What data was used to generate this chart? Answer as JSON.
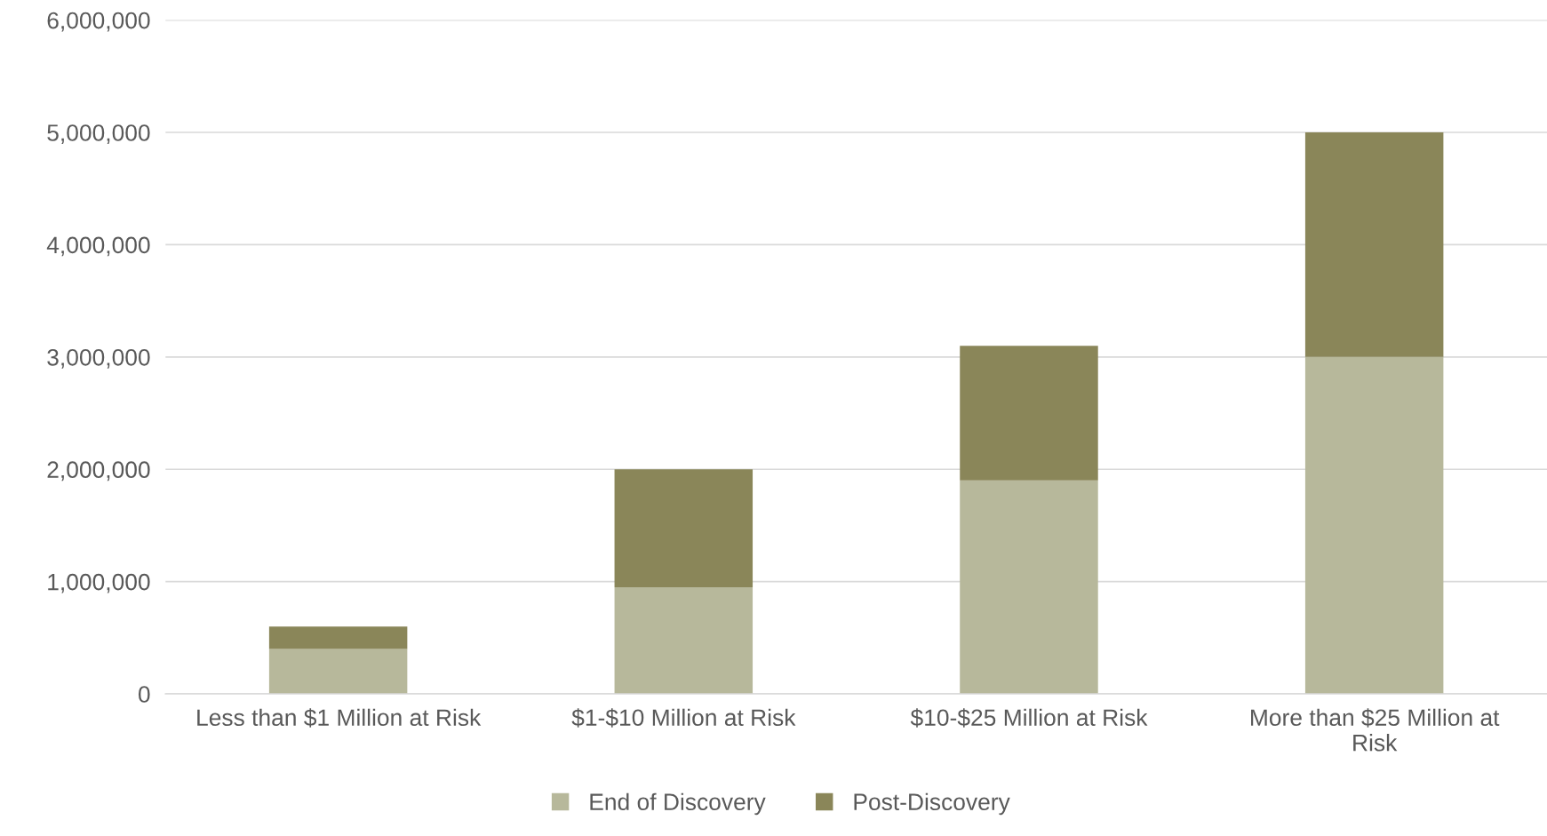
{
  "chart_data": {
    "type": "bar",
    "stacked": true,
    "categories": [
      "Less than $1 Million at Risk",
      "$1-$10 Million at Risk",
      "$10-$25 Million at Risk",
      "More than $25 Million at\nRisk"
    ],
    "series": [
      {
        "name": "End of Discovery",
        "color": "#b7b89b",
        "values": [
          400000,
          950000,
          1900000,
          3000000
        ]
      },
      {
        "name": "Post-Discovery",
        "color": "#8a8659",
        "values": [
          200000,
          1050000,
          1200000,
          2000000
        ]
      }
    ],
    "ylim": [
      0,
      6000000
    ],
    "yticks": [
      {
        "value": 0,
        "label": "0"
      },
      {
        "value": 1000000,
        "label": "1,000,000"
      },
      {
        "value": 2000000,
        "label": "2,000,000"
      },
      {
        "value": 3000000,
        "label": "3,000,000"
      },
      {
        "value": 4000000,
        "label": "4,000,000"
      },
      {
        "value": 5000000,
        "label": "5,000,000"
      },
      {
        "value": 6000000,
        "label": "6,000,000"
      }
    ],
    "grid": "y",
    "legend": "bottom"
  }
}
